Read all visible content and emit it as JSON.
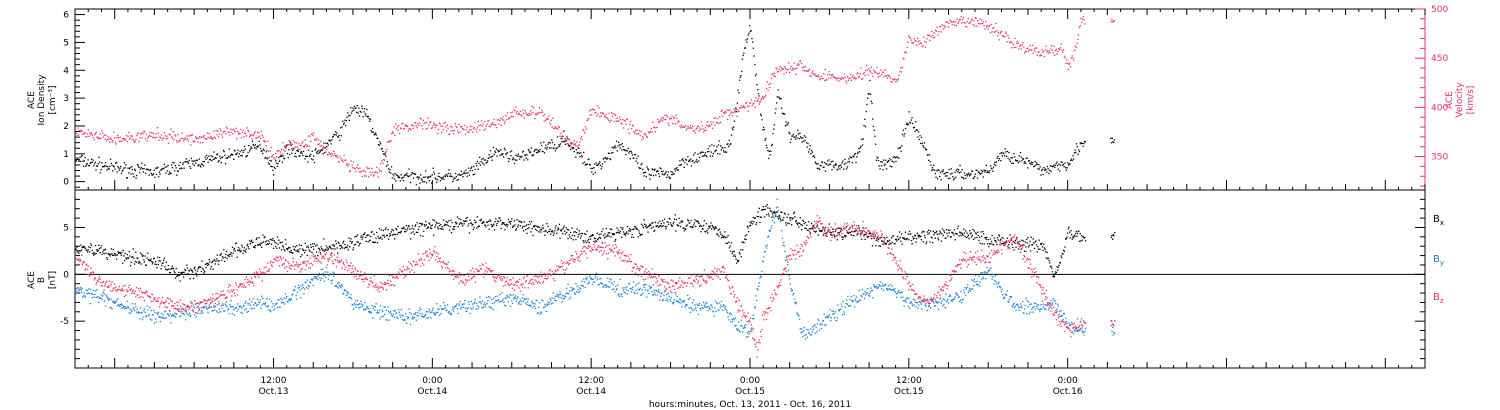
{
  "colors": {
    "black": "#000000",
    "pink": "#e8325e",
    "blue": "#1a7fd4",
    "axis": "#000000",
    "background": "#ffffff"
  },
  "x_axis": {
    "label": "hours:minutes, Oct. 13, 2011 - Oct. 16, 2011",
    "range_hours": [
      -3,
      99
    ],
    "ticks": [
      {
        "hour": 12,
        "time": "12:00",
        "date": "Oct.13"
      },
      {
        "hour": 24,
        "time": "0:00",
        "date": "Oct.14"
      },
      {
        "hour": 36,
        "time": "12:00",
        "date": "Oct.14"
      },
      {
        "hour": 48,
        "time": "0:00",
        "date": "Oct.15"
      },
      {
        "hour": 60,
        "time": "12:00",
        "date": "Oct.15"
      },
      {
        "hour": 72,
        "time": "0:00",
        "date": "Oct.16"
      }
    ]
  },
  "chart_data": [
    {
      "type": "scatter",
      "panel": "plasma",
      "ylabel_left": [
        "ACE",
        "Ion Density",
        "[cm⁻³]"
      ],
      "ylabel_right": [
        "ACE",
        "Velocity",
        "[km/s]"
      ],
      "ylim_left": [
        -0.3,
        6.2
      ],
      "ylim_right": [
        316,
        500
      ],
      "yticks_left": [
        0,
        1,
        2,
        3,
        4,
        5,
        6
      ],
      "yticks_right": [
        350,
        400,
        450,
        500
      ],
      "series": [
        {
          "axis": "left",
          "color": "black",
          "x": [
            -3,
            0,
            3,
            6,
            9,
            11,
            12,
            13,
            15,
            17,
            18,
            19,
            21,
            22,
            23,
            24,
            26,
            27,
            28,
            29,
            30,
            31,
            32,
            33,
            34,
            35,
            36,
            37,
            38,
            39,
            40,
            41,
            42,
            43,
            44,
            45,
            46,
            46.5,
            47,
            47.5,
            48,
            48.5,
            49,
            49.5,
            50,
            51,
            52,
            53,
            54,
            55,
            56,
            56.5,
            57,
            57.5,
            58,
            59,
            60,
            61,
            62,
            63,
            64,
            65,
            66,
            67,
            68,
            69,
            70,
            71,
            72,
            73
          ],
          "y": [
            0.8,
            0.5,
            0.35,
            0.7,
            1.0,
            1.3,
            0.5,
            1.2,
            0.9,
            1.8,
            2.7,
            2.4,
            0.2,
            0.2,
            0.2,
            0.2,
            0.2,
            0.4,
            0.8,
            1.1,
            0.9,
            0.9,
            1.2,
            1.3,
            1.6,
            1.0,
            0.5,
            0.8,
            1.4,
            1.0,
            0.3,
            0.3,
            0.3,
            0.8,
            0.9,
            1.1,
            1.2,
            1.4,
            3.0,
            4.7,
            5.6,
            3.5,
            1.8,
            0.8,
            3.2,
            1.7,
            1.6,
            0.7,
            0.6,
            0.6,
            1.0,
            1.6,
            3.5,
            0.9,
            0.6,
            0.8,
            2.3,
            1.4,
            0.3,
            0.3,
            0.3,
            0.3,
            0.4,
            1.0,
            0.9,
            0.7,
            0.4,
            0.6,
            0.7,
            1.4
          ]
        },
        {
          "axis": "right",
          "color": "pink",
          "x": [
            -3,
            0,
            3,
            6,
            9,
            11,
            12,
            13,
            14,
            15,
            16,
            17,
            18,
            19,
            20,
            21,
            22,
            23,
            24,
            25,
            26,
            27,
            28,
            29,
            30,
            31,
            32,
            33,
            34,
            35,
            36,
            37,
            38,
            39,
            40,
            41,
            42,
            43,
            44,
            45,
            46,
            47,
            48,
            49,
            49.5,
            50,
            51,
            52,
            53,
            54,
            55,
            56,
            57,
            58,
            59,
            60,
            61,
            62,
            63,
            64,
            65,
            66,
            67,
            68,
            69,
            70,
            71,
            71.5,
            72,
            72.5,
            73
          ],
          "y": [
            375,
            368,
            372,
            368,
            377,
            372,
            348,
            365,
            360,
            372,
            355,
            348,
            338,
            333,
            335,
            378,
            380,
            385,
            383,
            380,
            378,
            380,
            382,
            385,
            395,
            395,
            395,
            385,
            368,
            362,
            398,
            392,
            390,
            380,
            372,
            385,
            390,
            380,
            378,
            382,
            395,
            398,
            405,
            410,
            428,
            440,
            440,
            442,
            432,
            432,
            430,
            432,
            438,
            435,
            425,
            470,
            466,
            477,
            485,
            487,
            488,
            482,
            475,
            465,
            460,
            455,
            460,
            462,
            440,
            458,
            490
          ]
        }
      ]
    },
    {
      "type": "scatter",
      "panel": "magnetic_field",
      "ylabel_left": [
        "ACE",
        "B",
        "[nT]"
      ],
      "ylim": [
        -10,
        9
      ],
      "yticks": [
        -5,
        0,
        5
      ],
      "zero_line": true,
      "legend": [
        {
          "label": "Bx",
          "main": "B",
          "sub": "x",
          "color": "black"
        },
        {
          "label": "By",
          "main": "B",
          "sub": "y",
          "color": "blue"
        },
        {
          "label": "Bz",
          "main": "B",
          "sub": "z",
          "color": "pink"
        }
      ],
      "series": [
        {
          "name": "Bx",
          "color": "black",
          "x": [
            -3,
            -1,
            1,
            3,
            5,
            7,
            9,
            11,
            12,
            14,
            15,
            17,
            18,
            19,
            20,
            21,
            22,
            23,
            24,
            26,
            28,
            30,
            32,
            34,
            36,
            38,
            40,
            42,
            44,
            46,
            47,
            48,
            49,
            50,
            51,
            52,
            53,
            54,
            56,
            58,
            60,
            62,
            64,
            66,
            68,
            70,
            71,
            72,
            73
          ],
          "y": [
            3.0,
            2.5,
            2.0,
            1.5,
            0,
            1.0,
            2.5,
            3.5,
            3.5,
            2.5,
            2.8,
            3.0,
            3.5,
            4.0,
            4.2,
            4.5,
            4.8,
            5.0,
            5.2,
            5.4,
            5.5,
            5.5,
            5.0,
            4.5,
            4.0,
            4.5,
            5.0,
            5.5,
            5.5,
            4.5,
            1.5,
            5.5,
            7.0,
            6.5,
            6.0,
            5.5,
            5.0,
            4.5,
            4.5,
            3.5,
            4.0,
            4.2,
            4.5,
            3.8,
            3.5,
            3.2,
            0,
            4.5,
            4.0
          ]
        },
        {
          "name": "By",
          "color": "blue",
          "x": [
            -3,
            -1,
            1,
            3,
            5,
            7,
            9,
            11,
            12,
            14,
            16,
            18,
            20,
            22,
            24,
            26,
            28,
            30,
            32,
            34,
            36,
            38,
            40,
            42,
            44,
            46,
            47,
            48,
            49,
            50,
            51,
            52,
            54,
            56,
            58,
            60,
            62,
            64,
            66,
            68,
            70,
            71,
            72,
            73
          ],
          "y": [
            -1.5,
            -2.5,
            -3.5,
            -4.5,
            -4.0,
            -3.5,
            -3.5,
            -3.0,
            -3.5,
            -1.5,
            0.5,
            -3.0,
            -4.0,
            -4.5,
            -4.0,
            -3.5,
            -3.0,
            -2.5,
            -3.5,
            -2.0,
            -0.5,
            -1.5,
            -1.5,
            -2.5,
            -3.5,
            -3.5,
            -5.5,
            -6.0,
            2.0,
            7.5,
            -1.0,
            -6.5,
            -4.5,
            -2.5,
            -1.0,
            -3.0,
            -3.0,
            -2.0,
            0.5,
            -3.5,
            -3.5,
            -3.0,
            -5.5,
            -6.0
          ]
        },
        {
          "name": "Bz",
          "color": "pink",
          "x": [
            -3,
            -1,
            1,
            3,
            5,
            7,
            9,
            11,
            12,
            14,
            16,
            18,
            20,
            22,
            24,
            26,
            28,
            30,
            32,
            34,
            36,
            38,
            40,
            42,
            44,
            46,
            47,
            48,
            48.5,
            49,
            50,
            51,
            52,
            53,
            54,
            56,
            58,
            60,
            61,
            62,
            64,
            66,
            68,
            70,
            71,
            72,
            73
          ],
          "y": [
            2.0,
            -1.0,
            -1.5,
            -2.5,
            -3.5,
            -3.0,
            -1.5,
            0,
            1.5,
            1.0,
            2.0,
            0.5,
            -1.5,
            0.5,
            2.5,
            -0.5,
            0.5,
            -1.0,
            -0.5,
            1.0,
            3.0,
            2.5,
            0,
            -1.0,
            -0.5,
            0.5,
            -3.0,
            -5.0,
            -8.0,
            -4.5,
            -1.5,
            2.0,
            3.0,
            6.0,
            4.5,
            5.0,
            4.0,
            -1.0,
            -3.0,
            -2.5,
            1.5,
            2.0,
            4.0,
            -1.5,
            -4.0,
            -6.0,
            -5.0
          ]
        }
      ]
    }
  ]
}
